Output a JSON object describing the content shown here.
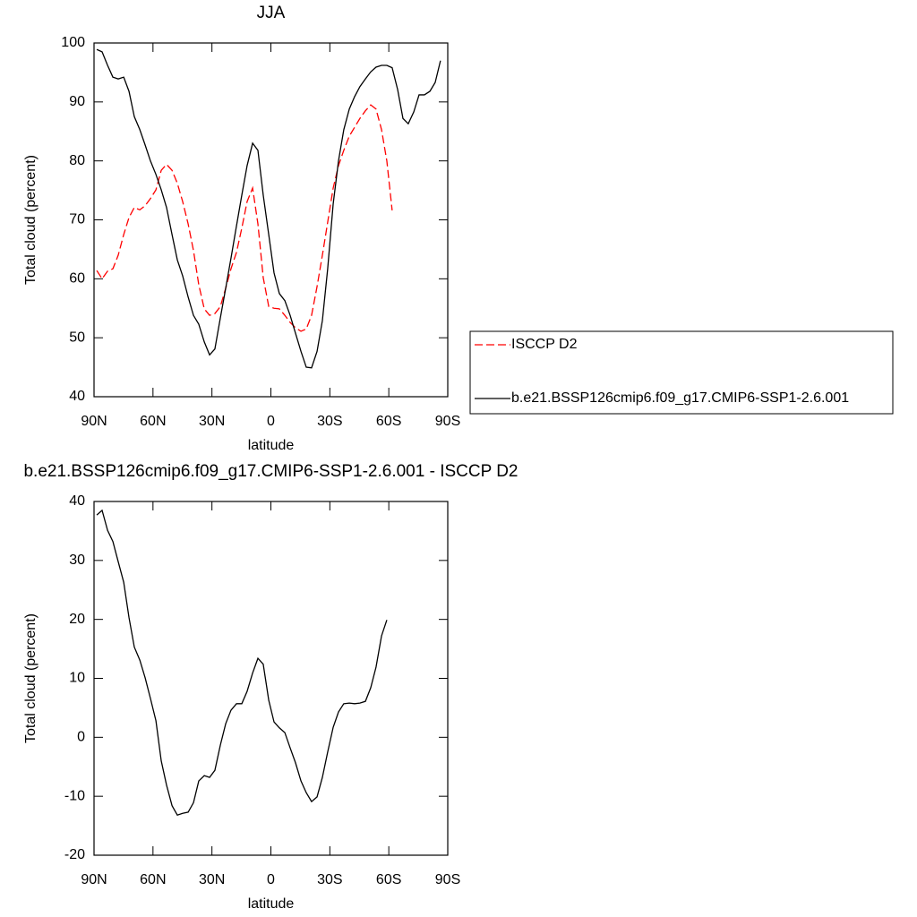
{
  "chart_data": [
    {
      "type": "line",
      "title": "JJA",
      "xlabel": "latitude",
      "ylabel": "Total cloud (percent)",
      "xlim": [
        90,
        -90
      ],
      "ylim": [
        40,
        100
      ],
      "xticks": [
        {
          "value": 90,
          "label": "90N"
        },
        {
          "value": 60,
          "label": "60N"
        },
        {
          "value": 30,
          "label": "30N"
        },
        0,
        {
          "value": -30,
          "label": "30S"
        },
        {
          "value": -60,
          "label": "60S"
        },
        {
          "value": -90,
          "label": "90S"
        }
      ],
      "yticks": [
        40,
        50,
        60,
        70,
        80,
        90,
        100
      ],
      "legend": "outside-right",
      "x": [
        88.6,
        85.9,
        83.1,
        80.4,
        77.7,
        74.9,
        72.2,
        69.5,
        66.7,
        64.0,
        61.3,
        58.5,
        55.8,
        53.1,
        50.3,
        47.6,
        44.9,
        42.1,
        39.4,
        36.7,
        33.9,
        31.2,
        28.5,
        25.7,
        23.0,
        20.3,
        17.5,
        14.8,
        12.1,
        9.3,
        6.6,
        3.9,
        1.1,
        -1.6,
        -4.3,
        -7.1,
        -9.8,
        -12.5,
        -15.3,
        -18.0,
        -20.7,
        -23.5,
        -26.2,
        -28.9,
        -31.7,
        -34.4,
        -37.1,
        -39.9,
        -42.6,
        -45.3,
        -48.1,
        -50.8,
        -53.5,
        -56.3,
        -59.0,
        -61.7,
        -64.5,
        -67.2,
        -69.9,
        -72.7,
        -75.4,
        -78.1,
        -80.9,
        -83.6,
        -86.3
      ],
      "series": [
        {
          "name": "ISCCP D2",
          "color": "#ff0000",
          "dashed": true,
          "values": [
            61.4,
            60.0,
            61.3,
            61.7,
            64.0,
            67.5,
            70.4,
            72.1,
            71.7,
            72.4,
            73.6,
            75.1,
            78.4,
            79.4,
            78.4,
            76.2,
            73.1,
            69.3,
            64.8,
            59.0,
            54.9,
            53.8,
            54.1,
            55.3,
            58.4,
            61.7,
            64.5,
            68.6,
            73.1,
            75.4,
            69.3,
            60.2,
            55.3,
            55.0,
            54.9,
            53.8,
            52.6,
            51.7,
            51.1,
            51.5,
            53.8,
            58.7,
            64.0,
            69.6,
            75.4,
            79.2,
            81.8,
            84.2,
            85.7,
            87.2,
            88.5,
            89.5,
            88.8,
            85.3,
            80.0,
            71.6,
            null,
            null,
            null,
            null,
            null,
            null,
            null,
            null,
            null
          ]
        },
        {
          "name": "b.e21.BSSP126cmip6.f09_g17.CMIP6-SSP1-2.6.001",
          "color": "#000000",
          "dashed": false,
          "values": [
            98.9,
            98.5,
            96.2,
            94.2,
            93.9,
            94.2,
            91.8,
            87.5,
            85.3,
            82.7,
            80.0,
            77.7,
            75.1,
            72.1,
            67.5,
            63.2,
            60.5,
            56.9,
            53.8,
            52.3,
            49.3,
            47.1,
            48.1,
            53.4,
            58.4,
            63.5,
            69.0,
            74.2,
            79.2,
            83.0,
            81.8,
            74.2,
            67.5,
            61.0,
            57.5,
            56.3,
            53.8,
            50.8,
            47.7,
            45.0,
            44.9,
            47.7,
            52.9,
            61.7,
            72.7,
            80.0,
            85.3,
            88.8,
            90.9,
            92.6,
            93.9,
            95.1,
            95.9,
            96.2,
            96.2,
            95.8,
            92.1,
            87.2,
            86.3,
            88.3,
            91.2,
            91.2,
            91.8,
            93.3,
            97.0
          ]
        }
      ]
    },
    {
      "type": "line",
      "title": "b.e21.BSSP126cmip6.f09_g17.CMIP6-SSP1-2.6.001 - ISCCP D2",
      "xlabel": "latitude",
      "ylabel": "Total cloud (percent)",
      "xlim": [
        90,
        -90
      ],
      "ylim": [
        -20,
        40
      ],
      "xticks": [
        {
          "value": 90,
          "label": "90N"
        },
        {
          "value": 60,
          "label": "60N"
        },
        {
          "value": 30,
          "label": "30N"
        },
        0,
        {
          "value": -30,
          "label": "30S"
        },
        {
          "value": -60,
          "label": "60S"
        },
        {
          "value": -90,
          "label": "90S"
        }
      ],
      "yticks": [
        -20,
        -10,
        0,
        10,
        20,
        30,
        40
      ],
      "x": [
        88.6,
        85.9,
        83.1,
        80.4,
        77.7,
        74.9,
        72.2,
        69.5,
        66.7,
        64.0,
        61.3,
        58.5,
        55.8,
        53.1,
        50.3,
        47.6,
        44.9,
        42.1,
        39.4,
        36.7,
        33.9,
        31.2,
        28.5,
        25.7,
        23.0,
        20.3,
        17.5,
        14.8,
        12.1,
        9.3,
        6.6,
        3.9,
        1.1,
        -1.6,
        -4.3,
        -7.1,
        -9.8,
        -12.5,
        -15.3,
        -18.0,
        -20.7,
        -23.5,
        -26.2,
        -28.9,
        -31.7,
        -34.4,
        -37.1,
        -39.9,
        -42.6,
        -45.3,
        -48.1,
        -50.8,
        -53.5,
        -56.3,
        -59.0
      ],
      "series": [
        {
          "color": "#000000",
          "dashed": false,
          "values": [
            37.7,
            38.5,
            35.1,
            33.2,
            29.8,
            26.3,
            20.3,
            15.3,
            13.1,
            10.1,
            6.6,
            2.8,
            -4.0,
            -8.1,
            -11.6,
            -13.2,
            -12.9,
            -12.7,
            -11.1,
            -7.4,
            -6.5,
            -6.8,
            -5.6,
            -1.3,
            2.3,
            4.6,
            5.7,
            5.7,
            7.8,
            10.9,
            13.4,
            12.4,
            6.3,
            2.6,
            1.6,
            0.8,
            -1.8,
            -4.3,
            -7.4,
            -9.4,
            -10.9,
            -10.1,
            -6.8,
            -2.5,
            1.7,
            4.3,
            5.7,
            5.8,
            5.7,
            5.8,
            6.1,
            8.4,
            11.9,
            17.2,
            19.9
          ]
        }
      ]
    }
  ]
}
